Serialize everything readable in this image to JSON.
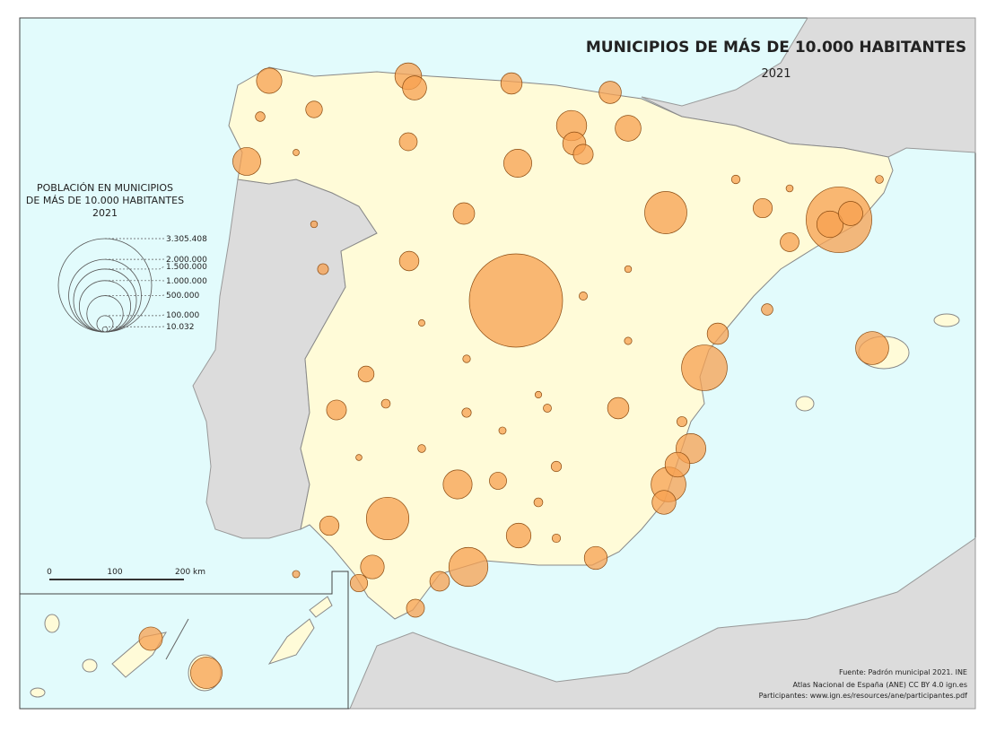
{
  "title": "MUNICIPIOS DE MÁS DE 10.000 HABITANTES",
  "subtitle": "2021",
  "legend": {
    "title_lines": [
      "POBLACIÓN EN MUNICIPIOS",
      "DE MÁS DE 10.000 HABITANTES",
      "2021"
    ],
    "sizes": [
      {
        "value": 3305408,
        "label": "3.305.408"
      },
      {
        "value": 2000000,
        "label": "2.000.000"
      },
      {
        "value": 1500000,
        "label": "1.500.000"
      },
      {
        "value": 1000000,
        "label": "1.000.000"
      },
      {
        "value": 500000,
        "label": "500.000"
      },
      {
        "value": 100000,
        "label": "100.000"
      },
      {
        "value": 10032,
        "label": "10.032"
      }
    ]
  },
  "scale_bar": {
    "labels": [
      "0",
      "100",
      "200 km"
    ]
  },
  "sources": [
    "Fuente: Padrón municipal 2021. INE",
    "Atlas Nacional de España (ANE) CC BY 4.0 ign.es",
    "Participantes: www.ign.es/resources/ane/participantes.pdf"
  ],
  "bubbles": {
    "values": [
      3305408,
      1636000,
      790000,
      685000,
      675000,
      578000,
      460000,
      416000,
      378000,
      346000,
      337000,
      319000,
      298000,
      296000,
      271000,
      265000,
      253000,
      245000,
      231000,
      234000,
      219000,
      223000,
      216000,
      208000,
      213000,
      203000,
      200000,
      187000,
      175000,
      172000,
      172000,
      173000,
      151000,
      150000,
      144000,
      143000,
      147000,
      140000,
      135000,
      122000,
      115000,
      112000,
      105000,
      123000,
      96000,
      30000,
      25000,
      20000,
      40000,
      18000,
      22000,
      35000,
      15000,
      28000,
      19000,
      24000,
      45000,
      17000,
      21000,
      33000,
      16000,
      26000,
      38000,
      14000,
      23000,
      30000,
      20000,
      27000,
      18000,
      50000
    ]
  }
}
